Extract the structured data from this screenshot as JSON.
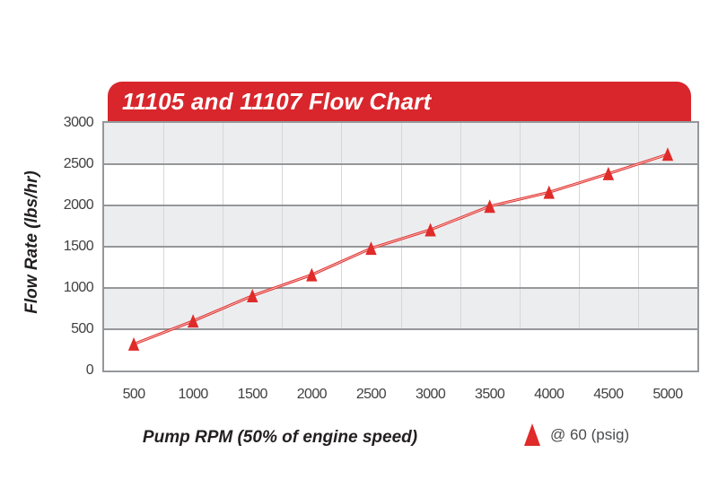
{
  "header": {
    "title": "11105 and 11107 Flow Chart"
  },
  "chart_data": {
    "type": "line",
    "title": "11105 and 11107 Flow Chart",
    "xlabel": "Pump RPM (50% of engine speed)",
    "ylabel": "Flow Rate (lbs/hr)",
    "x": [
      500,
      1000,
      1500,
      2000,
      2500,
      3000,
      3500,
      4000,
      4500,
      5000
    ],
    "series": [
      {
        "name": "@ 60 (psig)",
        "marker": "triangle",
        "values": [
          320,
          600,
          905,
          1160,
          1480,
          1705,
          1990,
          2160,
          2385,
          2620
        ]
      }
    ],
    "ylim": [
      0,
      3000
    ],
    "yticks": [
      0,
      500,
      1000,
      1500,
      2000,
      2500,
      3000
    ],
    "x_axis_style": "category: labels centered between vertical boundary gridlines",
    "grid": {
      "horizontal": "on (500 steps)",
      "vertical": "category boundaries"
    },
    "plot_bands": "alternating gray/white horizontal stripes every 500 units",
    "legend_position": "bottom-right, below chart",
    "colors": {
      "banner_red": "#d8262c",
      "series_red": "#df2b29",
      "line_highlight": "#f6b0ad",
      "band_gray": "#ecedef",
      "band_white": "#ffffff",
      "hgrid_gray": "#95979a",
      "vgrid_gray": "#d5d7d9",
      "tick_text": "#414042",
      "axis_title_text": "#231f20"
    }
  }
}
